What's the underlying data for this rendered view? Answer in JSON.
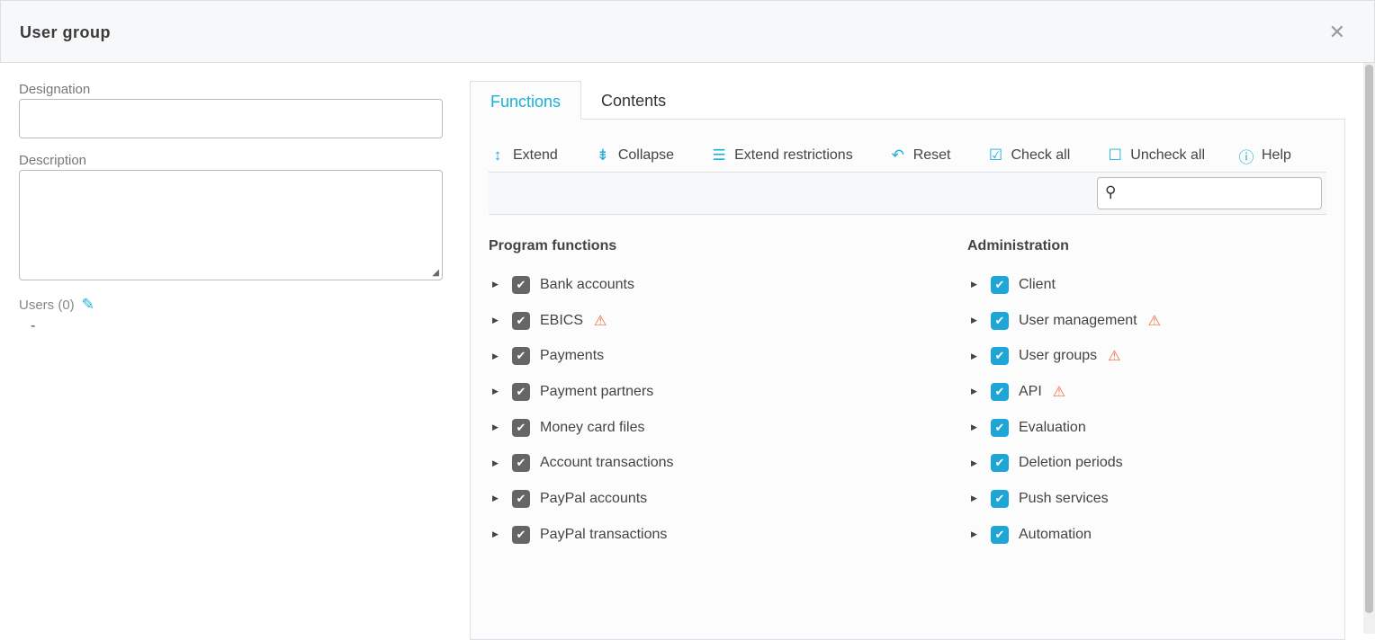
{
  "dialog": {
    "title": "User group",
    "close_icon": "close-icon"
  },
  "form": {
    "designation_label": "Designation",
    "designation_value": "",
    "description_label": "Description",
    "description_value": "",
    "users_label": "Users (0)",
    "users_value": "-"
  },
  "tabs": [
    {
      "label": "Functions",
      "active": true
    },
    {
      "label": "Contents",
      "active": false
    }
  ],
  "toolbar": {
    "extend": "Extend",
    "collapse": "Collapse",
    "extend_restrictions": "Extend restrictions",
    "reset": "Reset",
    "check_all": "Check all",
    "uncheck_all": "Uncheck all",
    "help": "Help"
  },
  "search": {
    "value": ""
  },
  "colors": {
    "accent": "#1ab0d8",
    "checkbox_gray": "#666666",
    "checkbox_blue": "#1ea6d6",
    "warning": "#f26a3c"
  },
  "program_functions": {
    "title": "Program functions",
    "items": [
      {
        "label": "Bank accounts",
        "checked": true,
        "warning": false
      },
      {
        "label": "EBICS",
        "checked": true,
        "warning": true
      },
      {
        "label": "Payments",
        "checked": true,
        "warning": false
      },
      {
        "label": "Payment partners",
        "checked": true,
        "warning": false
      },
      {
        "label": "Money card files",
        "checked": true,
        "warning": false
      },
      {
        "label": "Account transactions",
        "checked": true,
        "warning": false
      },
      {
        "label": "PayPal accounts",
        "checked": true,
        "warning": false
      },
      {
        "label": "PayPal transactions",
        "checked": true,
        "warning": false
      }
    ]
  },
  "administration": {
    "title": "Administration",
    "items": [
      {
        "label": "Client",
        "checked": true,
        "warning": false
      },
      {
        "label": "User management",
        "checked": true,
        "warning": true
      },
      {
        "label": "User groups",
        "checked": true,
        "warning": true
      },
      {
        "label": "API",
        "checked": true,
        "warning": true
      },
      {
        "label": "Evaluation",
        "checked": true,
        "warning": false
      },
      {
        "label": "Deletion periods",
        "checked": true,
        "warning": false
      },
      {
        "label": "Push services",
        "checked": true,
        "warning": false
      },
      {
        "label": "Automation",
        "checked": true,
        "warning": false
      }
    ]
  }
}
